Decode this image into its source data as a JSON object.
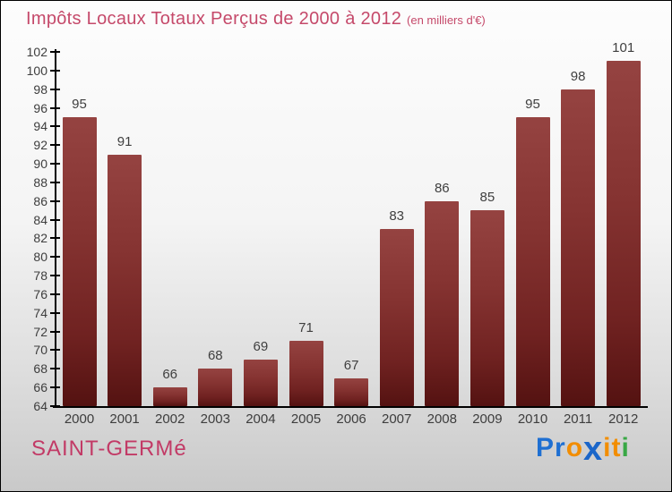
{
  "title": {
    "main": "Impôts Locaux Totaux Perçus de 2000 à 2012",
    "subtitle": "(en milliers d'€)"
  },
  "footer": {
    "city": "SAINT-GERMé",
    "logo_text": "Proxiti",
    "logo_letters": [
      {
        "ch": "P",
        "color": "#1e6fd2",
        "x": false
      },
      {
        "ch": "r",
        "color": "#1e6fd2",
        "x": false
      },
      {
        "ch": "o",
        "color": "#f28d00",
        "x": false
      },
      {
        "ch": "x",
        "color": "#1b66c9",
        "x": true
      },
      {
        "ch": "i",
        "color": "#f28d00",
        "x": false
      },
      {
        "ch": "t",
        "color": "#f28d00",
        "x": false
      },
      {
        "ch": "i",
        "color": "#39a845",
        "x": false
      }
    ]
  },
  "chart_data": {
    "type": "bar",
    "title": "Impôts Locaux Totaux Perçus de 2000 à 2012 (en milliers d'€)",
    "categories": [
      "2000",
      "2001",
      "2002",
      "2003",
      "2004",
      "2005",
      "2006",
      "2007",
      "2008",
      "2009",
      "2010",
      "2011",
      "2012"
    ],
    "values": [
      95,
      91,
      66,
      68,
      69,
      71,
      67,
      83,
      86,
      85,
      95,
      98,
      101
    ],
    "xlabel": "",
    "ylabel": "",
    "ylim": [
      64,
      102
    ],
    "ytick_step": 2,
    "grid": false,
    "legend": false,
    "bar_color_top": "#954341",
    "bar_color_bottom": "#541211",
    "axis_color": "#000000",
    "label_color": "#3d3d3d"
  }
}
